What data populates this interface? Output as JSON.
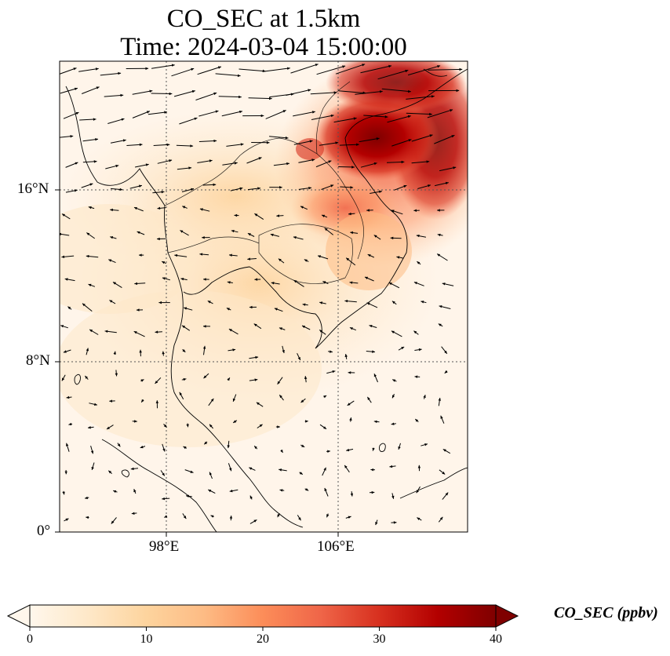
{
  "title": {
    "line1": "CO_SEC at 1.5km",
    "line2": "Time: 2024-03-04 15:00:00"
  },
  "map": {
    "lat_ticks": [
      "16°N",
      "8°N",
      "0°"
    ],
    "lon_ticks": [
      "98°E",
      "106°E"
    ],
    "gridlines": "dotted",
    "features": [
      "coastlines",
      "country borders",
      "wind vectors"
    ]
  },
  "colorbar": {
    "label": "CO_SEC (ppbv)",
    "min": 0,
    "max": 40,
    "ticks": [
      "0",
      "10",
      "20",
      "30",
      "40"
    ],
    "extend": "both",
    "colormap": "OrRd",
    "colors": [
      "#fff7ec",
      "#fee8c8",
      "#fdd49e",
      "#fdbb84",
      "#fc8d59",
      "#ef6548",
      "#d7301f",
      "#b30000",
      "#7f0000"
    ]
  }
}
